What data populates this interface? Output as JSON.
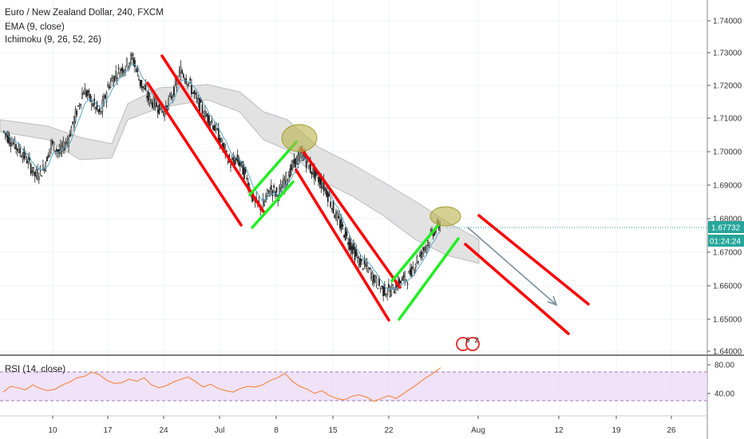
{
  "header": {
    "symbol_line": "Euro / New Zealand Dollar, 240, FXCM",
    "ema_line": "EMA (9, close)",
    "ichimoku_line": "Ichimoku (9, 26, 52, 26)"
  },
  "rsi_pane": {
    "label": "RSI (14, close)"
  },
  "price_tag": {
    "value": "1.67732",
    "countdown": "01:24:24"
  },
  "event_badge": {
    "a": "6",
    "b": "2"
  },
  "colors": {
    "up": "#26a69a",
    "down": "#ef5350",
    "ema": "#5aa9c9",
    "cloud": "#d8d8d8",
    "channel_red": "#ff0000",
    "channel_green": "#22ee22",
    "circle": "#b8b34a",
    "rsi": "#f57c2d",
    "rsi_band": "#e9d6f6",
    "arrow": "#78909c",
    "tag": "#26a69a"
  },
  "chart_data": {
    "type": "candlestick",
    "y_axis": {
      "ticks": [
        "1.74000",
        "1.73000",
        "1.72000",
        "1.71000",
        "1.70000",
        "1.69000",
        "1.68000",
        "1.67000",
        "1.66000",
        "1.65000",
        "1.64000"
      ],
      "ylim": [
        1.638,
        1.745
      ]
    },
    "x_axis": {
      "ticks": [
        "10",
        "17",
        "24",
        "Jul",
        "8",
        "15",
        "22",
        "Aug",
        "12",
        "19",
        "26"
      ]
    },
    "close_path": [
      1.707,
      1.704,
      1.701,
      1.698,
      1.693,
      1.695,
      1.703,
      1.7,
      1.704,
      1.712,
      1.72,
      1.716,
      1.712,
      1.721,
      1.725,
      1.727,
      1.73,
      1.722,
      1.717,
      1.715,
      1.713,
      1.719,
      1.726,
      1.722,
      1.716,
      1.712,
      1.709,
      1.703,
      1.697,
      1.698,
      1.693,
      1.685,
      1.683,
      1.689,
      1.687,
      1.692,
      1.697,
      1.7,
      1.695,
      1.692,
      1.688,
      1.681,
      1.676,
      1.671,
      1.666,
      1.664,
      1.66,
      1.657,
      1.657,
      1.66,
      1.661,
      1.666,
      1.67,
      1.675,
      1.678
    ],
    "rsi": {
      "ticks": [
        "80.00",
        "40.00"
      ],
      "band": [
        30,
        70
      ],
      "ylim": [
        10,
        90
      ],
      "values": [
        42,
        50,
        48,
        45,
        52,
        47,
        44,
        46,
        52,
        56,
        62,
        64,
        70,
        66,
        58,
        54,
        55,
        60,
        57,
        62,
        52,
        48,
        51,
        56,
        60,
        63,
        56,
        49,
        53,
        47,
        44,
        42,
        47,
        50,
        49,
        52,
        58,
        62,
        68,
        57,
        50,
        46,
        40,
        44,
        37,
        33,
        31,
        36,
        38,
        35,
        29,
        33,
        37,
        33,
        40,
        47,
        54,
        62,
        68,
        76
      ]
    },
    "annotations": [
      {
        "type": "channel",
        "color": "red",
        "start": "Jun 24",
        "end": "Jul 5"
      },
      {
        "type": "channel",
        "color": "green",
        "start": "Jul 5",
        "end": "Jul 10"
      },
      {
        "type": "channel",
        "color": "red",
        "start": "Jul 10",
        "end": "Jul 22"
      },
      {
        "type": "channel",
        "color": "green",
        "start": "Jul 22",
        "end": "Jul 27"
      },
      {
        "type": "channel",
        "color": "red",
        "start": "Jul 28",
        "end": "Aug 12"
      },
      {
        "type": "circle",
        "at": "Jul 10"
      },
      {
        "type": "circle",
        "at": "Jul 27"
      },
      {
        "type": "arrow",
        "direction": "down",
        "start": "Jul 28",
        "end": "Aug 8"
      }
    ]
  }
}
